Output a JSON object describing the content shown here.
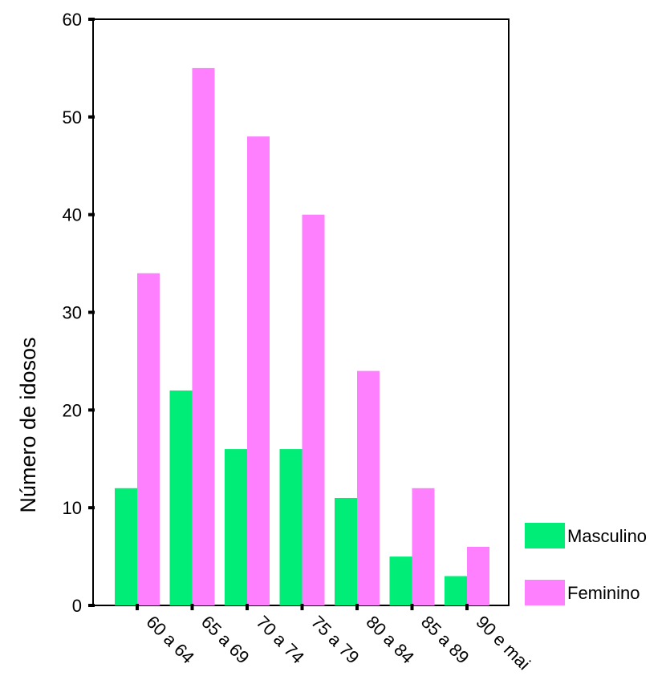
{
  "chart_data": {
    "type": "bar",
    "title": "",
    "xlabel": "",
    "ylabel": "Número de idosos",
    "ylim": [
      0,
      60
    ],
    "yticks": [
      0,
      10,
      20,
      30,
      40,
      50,
      60
    ],
    "grid": false,
    "legend_position": "right-bottom",
    "categories": [
      "60 a 64",
      "65 a 69",
      "70 a 74",
      "75 a 79",
      "80 a 84",
      "85 a 89",
      "90 e mai"
    ],
    "series": [
      {
        "name": "Masculino",
        "color": "#00ee77",
        "values": [
          12,
          22,
          16,
          16,
          11,
          5,
          3
        ]
      },
      {
        "name": "Feminino",
        "color": "#ff80ff",
        "values": [
          34,
          55,
          48,
          40,
          24,
          12,
          6
        ]
      }
    ]
  }
}
